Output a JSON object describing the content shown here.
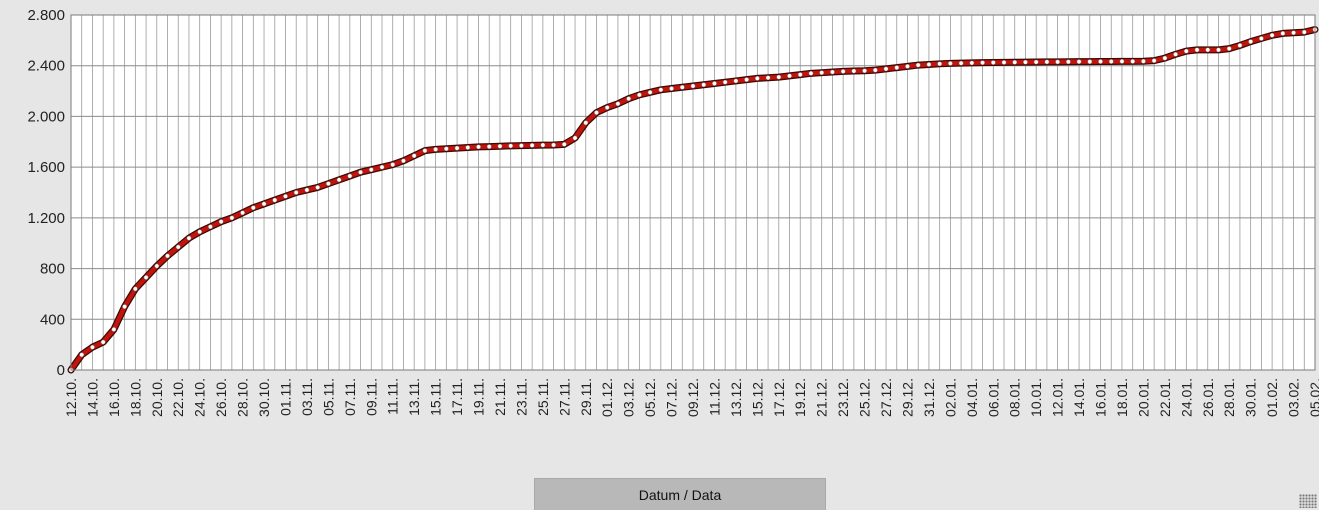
{
  "x_axis_button": {
    "label": "Datum / Data"
  },
  "chart_data": {
    "type": "line",
    "title": "",
    "xlabel": "Datum / Data",
    "ylabel": "",
    "ylim": [
      0,
      2800
    ],
    "yticks": [
      0,
      400,
      800,
      1200,
      1600,
      2000,
      2400,
      2800
    ],
    "ytick_labels": [
      "0",
      "400",
      "800",
      "1.200",
      "1.600",
      "2.000",
      "2.400",
      "2.800"
    ],
    "grid": true,
    "line_color": "#c0140c",
    "marker_color": "#ffffff",
    "background": "#ffffff",
    "x": [
      "12.10.",
      "13.10.",
      "14.10.",
      "15.10.",
      "16.10.",
      "17.10.",
      "18.10.",
      "19.10.",
      "20.10.",
      "21.10.",
      "22.10.",
      "23.10.",
      "24.10.",
      "25.10.",
      "26.10.",
      "27.10.",
      "28.10.",
      "29.10.",
      "30.10.",
      "31.10.",
      "01.11.",
      "02.11.",
      "03.11.",
      "04.11.",
      "05.11.",
      "06.11.",
      "07.11.",
      "08.11.",
      "09.11.",
      "10.11.",
      "11.11.",
      "12.11.",
      "13.11.",
      "14.11.",
      "15.11.",
      "16.11.",
      "17.11.",
      "18.11.",
      "19.11.",
      "20.11.",
      "21.11.",
      "22.11.",
      "23.11.",
      "24.11.",
      "25.11.",
      "26.11.",
      "27.11.",
      "28.11.",
      "29.11.",
      "30.11.",
      "01.12.",
      "02.12.",
      "03.12.",
      "04.12.",
      "05.12.",
      "06.12.",
      "07.12.",
      "08.12.",
      "09.12.",
      "10.12.",
      "11.12.",
      "12.12.",
      "13.12.",
      "14.12.",
      "15.12.",
      "16.12.",
      "17.12.",
      "18.12.",
      "19.12.",
      "20.12.",
      "21.12.",
      "22.12.",
      "23.12.",
      "24.12.",
      "25.12.",
      "26.12.",
      "27.12.",
      "28.12.",
      "29.12.",
      "30.12.",
      "31.12.",
      "01.01.",
      "02.01.",
      "03.01.",
      "04.01.",
      "05.01.",
      "06.01.",
      "07.01.",
      "08.01.",
      "09.01.",
      "10.01.",
      "11.01.",
      "12.01.",
      "13.01.",
      "14.01.",
      "15.01.",
      "16.01.",
      "17.01.",
      "18.01.",
      "19.01.",
      "20.01.",
      "21.01.",
      "22.01.",
      "23.01.",
      "24.01.",
      "25.01.",
      "26.01.",
      "27.01.",
      "28.01.",
      "29.01.",
      "30.01.",
      "31.01.",
      "01.02.",
      "02.02.",
      "03.02.",
      "04.02.",
      "05.02."
    ],
    "x_tick_labels": [
      "12.10.",
      "14.10.",
      "16.10.",
      "18.10.",
      "20.10.",
      "22.10.",
      "24.10.",
      "26.10.",
      "28.10.",
      "30.10.",
      "01.11.",
      "03.11.",
      "05.11.",
      "07.11.",
      "09.11.",
      "11.11.",
      "13.11.",
      "15.11.",
      "17.11.",
      "19.11.",
      "21.11.",
      "23.11.",
      "25.11.",
      "27.11.",
      "29.11.",
      "01.12.",
      "03.12.",
      "05.12.",
      "07.12.",
      "09.12.",
      "11.12.",
      "13.12.",
      "15.12.",
      "17.12.",
      "19.12.",
      "21.12.",
      "23.12.",
      "25.12.",
      "27.12.",
      "29.12.",
      "31.12.",
      "02.01.",
      "04.01.",
      "06.01.",
      "08.01.",
      "10.01.",
      "12.01.",
      "14.01.",
      "16.01.",
      "18.01.",
      "20.01.",
      "22.01.",
      "24.01.",
      "26.01.",
      "28.01.",
      "30.01.",
      "01.02.",
      "03.02.",
      "05.02."
    ],
    "values": [
      0,
      120,
      180,
      220,
      320,
      500,
      640,
      730,
      820,
      900,
      970,
      1040,
      1090,
      1130,
      1170,
      1200,
      1240,
      1280,
      1310,
      1340,
      1370,
      1400,
      1420,
      1440,
      1470,
      1500,
      1530,
      1560,
      1580,
      1600,
      1620,
      1650,
      1690,
      1730,
      1740,
      1745,
      1750,
      1755,
      1760,
      1762,
      1765,
      1768,
      1770,
      1772,
      1774,
      1775,
      1780,
      1830,
      1950,
      2030,
      2070,
      2100,
      2140,
      2170,
      2190,
      2210,
      2220,
      2230,
      2240,
      2250,
      2260,
      2270,
      2280,
      2290,
      2300,
      2305,
      2310,
      2320,
      2330,
      2340,
      2345,
      2350,
      2355,
      2358,
      2360,
      2365,
      2375,
      2385,
      2395,
      2405,
      2410,
      2415,
      2418,
      2420,
      2422,
      2424,
      2425,
      2426,
      2427,
      2428,
      2429,
      2430,
      2430,
      2431,
      2432,
      2432,
      2433,
      2433,
      2434,
      2434,
      2435,
      2440,
      2460,
      2490,
      2515,
      2525,
      2525,
      2525,
      2535,
      2560,
      2590,
      2615,
      2640,
      2655,
      2660,
      2665,
      2685
    ]
  }
}
